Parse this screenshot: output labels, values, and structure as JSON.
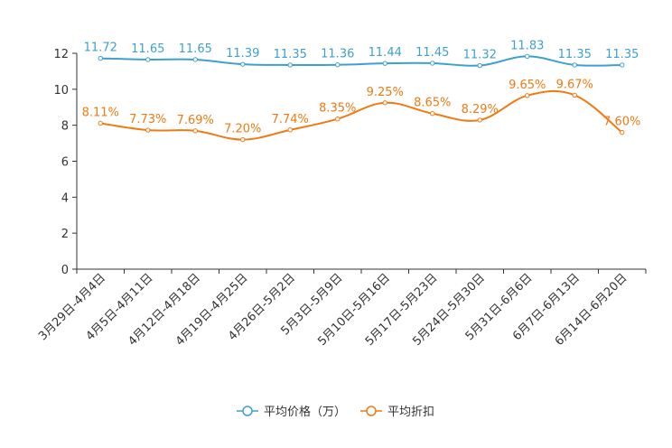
{
  "chart_data": {
    "type": "line",
    "title": "",
    "xlabel": "",
    "ylabel": "",
    "ylim": [
      0,
      12
    ],
    "yticks": [
      0,
      2,
      4,
      6,
      8,
      10,
      12
    ],
    "grid": false,
    "legend_position": "bottom-center",
    "categories": [
      "3月29日-4月4日",
      "4月5日-4月11日",
      "4月12日-4月18日",
      "4月19日-4月25日",
      "4月26日-5月2日",
      "5月3日-5月9日",
      "5月10日-5月16日",
      "5月17日-5月23日",
      "5月24日-5月30日",
      "5月31日-6月6日",
      "6月7日-6月13日",
      "6月14日-6月20日"
    ],
    "series": [
      {
        "name": "平均价格（万）",
        "color": "#3fa0cf",
        "values": [
          11.72,
          11.65,
          11.65,
          11.39,
          11.35,
          11.36,
          11.44,
          11.45,
          11.32,
          11.83,
          11.35,
          11.35
        ],
        "labels": [
          "11.72",
          "11.65",
          "11.65",
          "11.39",
          "11.35",
          "11.36",
          "11.44",
          "11.45",
          "11.32",
          "11.83",
          "11.35",
          "11.35"
        ]
      },
      {
        "name": "平均折扣",
        "color": "#f07a13",
        "values": [
          8.11,
          7.73,
          7.69,
          7.2,
          7.74,
          8.35,
          9.25,
          8.65,
          8.29,
          9.65,
          9.67,
          7.6
        ],
        "labels": [
          "8.11%",
          "7.73%",
          "7.69%",
          "7.20%",
          "7.74%",
          "8.35%",
          "9.25%",
          "8.65%",
          "8.29%",
          "9.65%",
          "9.67%",
          "7.60%"
        ]
      }
    ]
  }
}
